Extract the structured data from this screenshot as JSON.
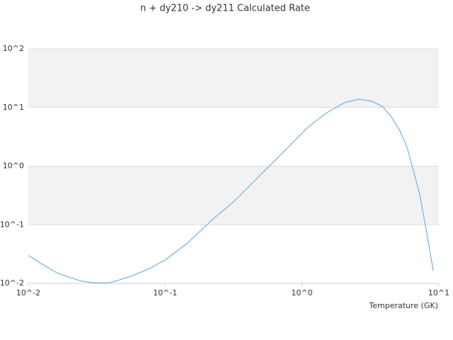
{
  "chart_data": {
    "type": "line",
    "title": "n + dy210 -> dy211 Calculated Rate",
    "x_label": "Temperature (GK)",
    "xscale": "log",
    "yscale": "log",
    "xlim": [
      0.01,
      10
    ],
    "ylim": [
      0.01,
      100
    ],
    "xticks": [
      {
        "value": 0.01,
        "label": "10^-2"
      },
      {
        "value": 0.1,
        "label": "10^-1"
      },
      {
        "value": 1,
        "label": "10^0"
      },
      {
        "value": 10,
        "label": "10^1"
      }
    ],
    "yticks": [
      {
        "value": 0.01,
        "label": "10^-2"
      },
      {
        "value": 0.1,
        "label": "10^-1"
      },
      {
        "value": 1,
        "label": "10^0"
      },
      {
        "value": 10,
        "label": "10^1"
      },
      {
        "value": 100,
        "label": "10^2"
      }
    ],
    "grid": true,
    "band_color": "#f2f2f2",
    "x": [
      0.01,
      0.0127,
      0.0161,
      0.0204,
      0.0244,
      0.0292,
      0.037,
      0.0418,
      0.0562,
      0.0757,
      0.102,
      0.146,
      0.221,
      0.316,
      0.509,
      0.82,
      1.1,
      1.49,
      2.05,
      2.6,
      3.23,
      3.86,
      4.5,
      5.2,
      5.86,
      6.44,
      7.26,
      8.18,
      9.11
    ],
    "series": [
      {
        "color": "#5ba3e0",
        "values": [
          0.03,
          0.021,
          0.0152,
          0.0125,
          0.0109,
          0.0103,
          0.0101,
          0.0106,
          0.0132,
          0.0175,
          0.0258,
          0.0489,
          0.122,
          0.245,
          0.746,
          2.27,
          4.56,
          7.95,
          12.1,
          13.9,
          12.8,
          10.5,
          6.92,
          3.96,
          2.09,
          0.93,
          0.324,
          0.07,
          0.0165
        ]
      }
    ]
  }
}
